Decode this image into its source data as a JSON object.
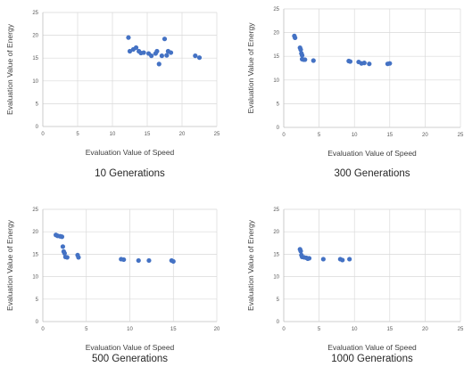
{
  "chart_data": [
    {
      "type": "scatter",
      "title": "",
      "caption": "10 Generations",
      "xlabel": "Evaluation Value of Speed",
      "ylabel": "Evaluation Value of Energy",
      "xlim": [
        0,
        25
      ],
      "ylim": [
        0,
        25
      ],
      "xticks": [
        0,
        5,
        10,
        15,
        20,
        25
      ],
      "yticks": [
        0,
        5,
        10,
        15,
        20,
        25
      ],
      "grid": true,
      "color": "#4472c4",
      "points": [
        [
          12.3,
          19.5
        ],
        [
          12.5,
          16.5
        ],
        [
          13.0,
          16.9
        ],
        [
          13.4,
          17.3
        ],
        [
          13.8,
          16.5
        ],
        [
          14.1,
          16.1
        ],
        [
          14.5,
          16.2
        ],
        [
          15.2,
          16.0
        ],
        [
          15.6,
          15.5
        ],
        [
          16.2,
          16.0
        ],
        [
          16.4,
          16.5
        ],
        [
          16.7,
          13.7
        ],
        [
          17.1,
          15.5
        ],
        [
          17.5,
          19.2
        ],
        [
          17.8,
          15.6
        ],
        [
          18.0,
          16.5
        ],
        [
          18.4,
          16.2
        ],
        [
          21.9,
          15.5
        ],
        [
          22.5,
          15.1
        ]
      ]
    },
    {
      "type": "scatter",
      "title": "",
      "caption": "300 Generations",
      "xlabel": "Evaluation Value of Speed",
      "ylabel": "Evaluation Value of Energy",
      "xlim": [
        0,
        25
      ],
      "ylim": [
        0,
        25
      ],
      "xticks": [
        0,
        5,
        10,
        15,
        20,
        25
      ],
      "yticks": [
        0,
        5,
        10,
        15,
        20,
        25
      ],
      "grid": true,
      "color": "#4472c4",
      "points": [
        [
          1.5,
          19.3
        ],
        [
          1.6,
          18.9
        ],
        [
          2.3,
          16.8
        ],
        [
          2.4,
          16.4
        ],
        [
          2.5,
          15.6
        ],
        [
          2.6,
          15.2
        ],
        [
          2.6,
          14.4
        ],
        [
          2.8,
          14.3
        ],
        [
          3.0,
          14.3
        ],
        [
          4.2,
          14.1
        ],
        [
          9.2,
          14.0
        ],
        [
          9.4,
          13.9
        ],
        [
          10.6,
          13.8
        ],
        [
          11.0,
          13.5
        ],
        [
          11.4,
          13.6
        ],
        [
          12.1,
          13.4
        ],
        [
          14.7,
          13.4
        ],
        [
          15.0,
          13.5
        ]
      ]
    },
    {
      "type": "scatter",
      "title": "",
      "caption": "500 Generations",
      "xlabel": "Evaluation Value of Speed",
      "ylabel": "Evaluation Value of Energy",
      "xlim": [
        0,
        20
      ],
      "ylim": [
        0,
        25
      ],
      "xticks": [
        0,
        5,
        10,
        15,
        20
      ],
      "yticks": [
        0,
        5,
        10,
        15,
        20,
        25
      ],
      "grid": true,
      "color": "#4472c4",
      "points": [
        [
          1.5,
          19.3
        ],
        [
          1.7,
          19.1
        ],
        [
          2.0,
          19.0
        ],
        [
          2.2,
          18.9
        ],
        [
          2.3,
          16.7
        ],
        [
          2.4,
          15.6
        ],
        [
          2.5,
          15.2
        ],
        [
          2.6,
          14.4
        ],
        [
          2.8,
          14.3
        ],
        [
          4.0,
          14.8
        ],
        [
          4.1,
          14.3
        ],
        [
          9.0,
          13.9
        ],
        [
          9.3,
          13.8
        ],
        [
          11.0,
          13.6
        ],
        [
          12.2,
          13.6
        ],
        [
          14.8,
          13.6
        ],
        [
          15.0,
          13.4
        ]
      ]
    },
    {
      "type": "scatter",
      "title": "",
      "caption": "1000 Generations",
      "xlabel": "Evaluation Value of Speed",
      "ylabel": "Evaluation Value of Energy",
      "xlim": [
        0,
        25
      ],
      "ylim": [
        0,
        25
      ],
      "xticks": [
        0,
        5,
        10,
        15,
        20,
        25
      ],
      "yticks": [
        0,
        5,
        10,
        15,
        20,
        25
      ],
      "grid": true,
      "color": "#4472c4",
      "points": [
        [
          2.3,
          16.1
        ],
        [
          2.4,
          15.7
        ],
        [
          2.5,
          14.8
        ],
        [
          2.6,
          14.4
        ],
        [
          2.9,
          14.3
        ],
        [
          3.2,
          14.2
        ],
        [
          3.4,
          14.0
        ],
        [
          3.6,
          14.1
        ],
        [
          5.6,
          13.9
        ],
        [
          8.0,
          13.9
        ],
        [
          8.3,
          13.7
        ],
        [
          9.3,
          13.9
        ]
      ]
    }
  ]
}
